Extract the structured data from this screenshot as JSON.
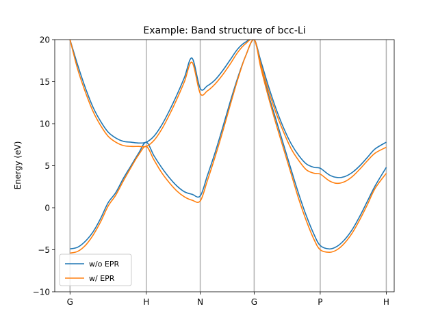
{
  "chart_data": {
    "type": "line",
    "title": "Example: Band structure of bcc-Li",
    "xlabel": "",
    "ylabel": "Energy (eV)",
    "ylim": [
      -10,
      20
    ],
    "xlim": [
      -0.2,
      4.25
    ],
    "yticks": [
      -10,
      -5,
      0,
      5,
      10,
      15,
      20
    ],
    "high_symmetry_points": [
      {
        "label": "G",
        "x": 0.0
      },
      {
        "label": "H",
        "x": 1.0
      },
      {
        "label": "N",
        "x": 1.7071
      },
      {
        "label": "G",
        "x": 2.4142
      },
      {
        "label": "P",
        "x": 3.2802
      },
      {
        "label": "H",
        "x": 4.1463
      }
    ],
    "vertical_lines": true,
    "legend_position": "lower-left",
    "colors": {
      "series_0": "#1f77b4",
      "series_1": "#ff7f0e",
      "vline": "#b0b0b0"
    },
    "series": [
      {
        "name": "w/o EPR",
        "color": "#1f77b4",
        "bands": [
          {
            "x": [
              0,
              0.1,
              0.2,
              0.3,
              0.4,
              0.5,
              0.6,
              0.7,
              0.8,
              0.9,
              1.0,
              1.1,
              1.2,
              1.3,
              1.4,
              1.5,
              1.6,
              1.7071,
              1.8,
              1.9,
              2.0,
              2.1,
              2.2,
              2.3,
              2.4142,
              2.5,
              2.6,
              2.7,
              2.8,
              2.9,
              3.0,
              3.1,
              3.2,
              3.2802,
              3.4,
              3.5,
              3.6,
              3.7,
              3.8,
              3.9,
              4.0,
              4.1463
            ],
            "y": [
              -4.9,
              -4.7,
              -4.0,
              -2.9,
              -1.3,
              0.6,
              1.8,
              3.5,
              5.0,
              6.5,
              7.8,
              6.2,
              4.8,
              3.6,
              2.6,
              1.9,
              1.6,
              1.4,
              3.8,
              6.5,
              9.5,
              12.6,
              15.5,
              18.0,
              20.0,
              17.0,
              13.5,
              10.5,
              7.5,
              4.5,
              1.6,
              -1.0,
              -3.2,
              -4.5,
              -4.9,
              -4.6,
              -3.8,
              -2.6,
              -1.0,
              0.8,
              2.6,
              4.8
            ]
          },
          {
            "x": [
              0,
              0.1,
              0.2,
              0.3,
              0.4,
              0.5,
              0.6,
              0.7,
              0.8,
              0.9,
              1.0,
              1.1,
              1.2,
              1.3,
              1.4,
              1.5,
              1.6,
              1.7071,
              1.8,
              1.9,
              2.0,
              2.1,
              2.2,
              2.3,
              2.4142,
              2.5,
              2.6,
              2.7,
              2.8,
              2.9,
              3.0,
              3.1,
              3.2,
              3.2802,
              3.4,
              3.5,
              3.6,
              3.7,
              3.8,
              3.9,
              4.0,
              4.1463
            ],
            "y": [
              20.0,
              17.0,
              14.3,
              12.0,
              10.3,
              9.0,
              8.3,
              7.9,
              7.8,
              7.7,
              7.8,
              8.5,
              9.8,
              11.5,
              13.4,
              15.5,
              17.8,
              14.2,
              14.5,
              15.2,
              16.3,
              17.6,
              18.9,
              19.7,
              20.0,
              17.5,
              14.5,
              11.8,
              9.5,
              7.6,
              6.2,
              5.2,
              4.8,
              4.7,
              3.9,
              3.6,
              3.7,
              4.2,
              5.0,
              6.0,
              7.0,
              7.8
            ]
          }
        ]
      },
      {
        "name": "w/ EPR",
        "color": "#ff7f0e",
        "bands": [
          {
            "x": [
              0,
              0.1,
              0.2,
              0.3,
              0.4,
              0.5,
              0.6,
              0.7,
              0.8,
              0.9,
              1.0,
              1.1,
              1.2,
              1.3,
              1.4,
              1.5,
              1.6,
              1.7071,
              1.8,
              1.9,
              2.0,
              2.1,
              2.2,
              2.3,
              2.4142,
              2.5,
              2.6,
              2.7,
              2.8,
              2.9,
              3.0,
              3.1,
              3.2,
              3.2802,
              3.4,
              3.5,
              3.6,
              3.7,
              3.8,
              3.9,
              4.0,
              4.1463
            ],
            "y": [
              -5.4,
              -5.2,
              -4.5,
              -3.3,
              -1.7,
              0.2,
              1.5,
              3.2,
              4.8,
              6.3,
              7.3,
              5.7,
              4.2,
              3.0,
              2.0,
              1.3,
              0.9,
              0.8,
              3.2,
              6.0,
              9.0,
              12.2,
              15.3,
              18.0,
              20.0,
              16.7,
              13.2,
              10.0,
              7.0,
              4.0,
              1.0,
              -1.6,
              -3.8,
              -5.0,
              -5.3,
              -5.0,
              -4.2,
              -3.0,
              -1.4,
              0.4,
              2.3,
              4.1
            ]
          },
          {
            "x": [
              0,
              0.1,
              0.2,
              0.3,
              0.4,
              0.5,
              0.6,
              0.7,
              0.8,
              0.9,
              1.0,
              1.1,
              1.2,
              1.3,
              1.4,
              1.5,
              1.6,
              1.7071,
              1.8,
              1.9,
              2.0,
              2.1,
              2.2,
              2.3,
              2.4142,
              2.5,
              2.6,
              2.7,
              2.8,
              2.9,
              3.0,
              3.1,
              3.2,
              3.2802,
              3.4,
              3.5,
              3.6,
              3.7,
              3.8,
              3.9,
              4.0,
              4.1463
            ],
            "y": [
              20.0,
              16.5,
              13.8,
              11.5,
              9.8,
              8.5,
              7.8,
              7.4,
              7.3,
              7.3,
              7.3,
              8.0,
              9.3,
              11.0,
              12.9,
              15.0,
              17.3,
              13.6,
              13.9,
              14.7,
              15.8,
              17.1,
              18.5,
              19.5,
              20.0,
              17.1,
              14.0,
              11.3,
              9.0,
              7.0,
              5.6,
              4.5,
              4.1,
              4.0,
              3.2,
              2.9,
              3.1,
              3.7,
              4.6,
              5.6,
              6.5,
              7.2
            ]
          }
        ]
      }
    ]
  }
}
